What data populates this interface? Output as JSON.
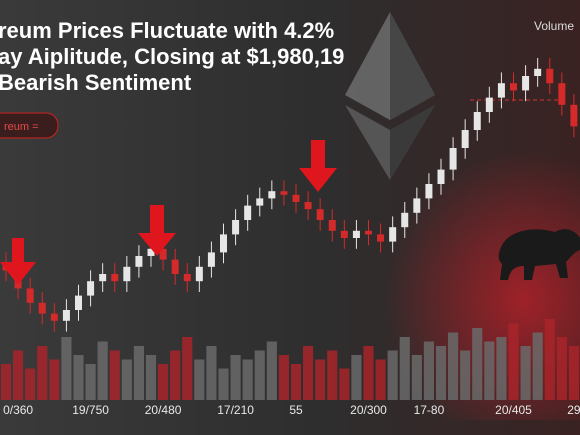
{
  "chart_data": {
    "type": "candlestick",
    "title_lines": [
      "reum Prices Fluctuate with 4.2%",
      "ay Aiplitude, Closing at $1,980,19",
      "Bearish Sentiment"
    ],
    "badge": "reum =",
    "volume_label": "Volume",
    "categories": [
      null,
      "0/360",
      null,
      null,
      null,
      null,
      null,
      "19/750",
      null,
      null,
      null,
      null,
      null,
      "20/480",
      null,
      null,
      null,
      null,
      null,
      "17/210",
      null,
      null,
      null,
      null,
      "55",
      null,
      null,
      null,
      null,
      null,
      "20/300",
      null,
      null,
      null,
      null,
      "17-80",
      null,
      null,
      null,
      null,
      null,
      null,
      "20/405",
      null,
      null,
      null,
      null,
      "29"
    ],
    "open": [
      38,
      36,
      31,
      27,
      24,
      22,
      25,
      29,
      33,
      35,
      33,
      37,
      40,
      42,
      39,
      35,
      33,
      37,
      41,
      46,
      50,
      54,
      56,
      58,
      57,
      55,
      53,
      50,
      47,
      45,
      47,
      46,
      44,
      48,
      52,
      56,
      60,
      64,
      70,
      75,
      80,
      84,
      88,
      86,
      90,
      92,
      88,
      82
    ],
    "close": [
      36,
      31,
      27,
      24,
      22,
      25,
      29,
      33,
      35,
      33,
      37,
      40,
      42,
      39,
      35,
      33,
      37,
      41,
      46,
      50,
      54,
      56,
      58,
      57,
      55,
      53,
      50,
      47,
      45,
      47,
      46,
      44,
      48,
      52,
      56,
      60,
      64,
      70,
      75,
      80,
      84,
      88,
      86,
      90,
      92,
      88,
      82,
      76
    ],
    "high": [
      41,
      39,
      34,
      30,
      27,
      28,
      32,
      36,
      38,
      38,
      40,
      43,
      45,
      45,
      42,
      38,
      40,
      44,
      49,
      53,
      57,
      59,
      61,
      61,
      60,
      58,
      56,
      53,
      50,
      50,
      50,
      49,
      51,
      55,
      59,
      63,
      67,
      73,
      78,
      83,
      87,
      91,
      91,
      93,
      95,
      95,
      91,
      85
    ],
    "low": [
      33,
      28,
      24,
      21,
      19,
      19,
      22,
      26,
      30,
      30,
      30,
      34,
      37,
      36,
      32,
      30,
      30,
      34,
      38,
      43,
      47,
      51,
      53,
      54,
      52,
      50,
      47,
      44,
      42,
      42,
      43,
      41,
      41,
      45,
      49,
      53,
      57,
      61,
      67,
      72,
      77,
      81,
      83,
      83,
      87,
      85,
      79,
      73
    ],
    "volume": [
      40,
      55,
      35,
      60,
      45,
      70,
      50,
      40,
      65,
      55,
      45,
      60,
      50,
      40,
      55,
      70,
      45,
      60,
      35,
      50,
      45,
      55,
      65,
      50,
      40,
      60,
      45,
      55,
      35,
      50,
      60,
      45,
      55,
      70,
      50,
      65,
      60,
      75,
      55,
      80,
      65,
      70,
      85,
      60,
      75,
      90,
      70,
      60
    ],
    "ylim": [
      0,
      100
    ],
    "volume_lim": [
      0,
      100
    ],
    "up_color": "#e6e6e6",
    "down_color": "#d42a2a"
  }
}
